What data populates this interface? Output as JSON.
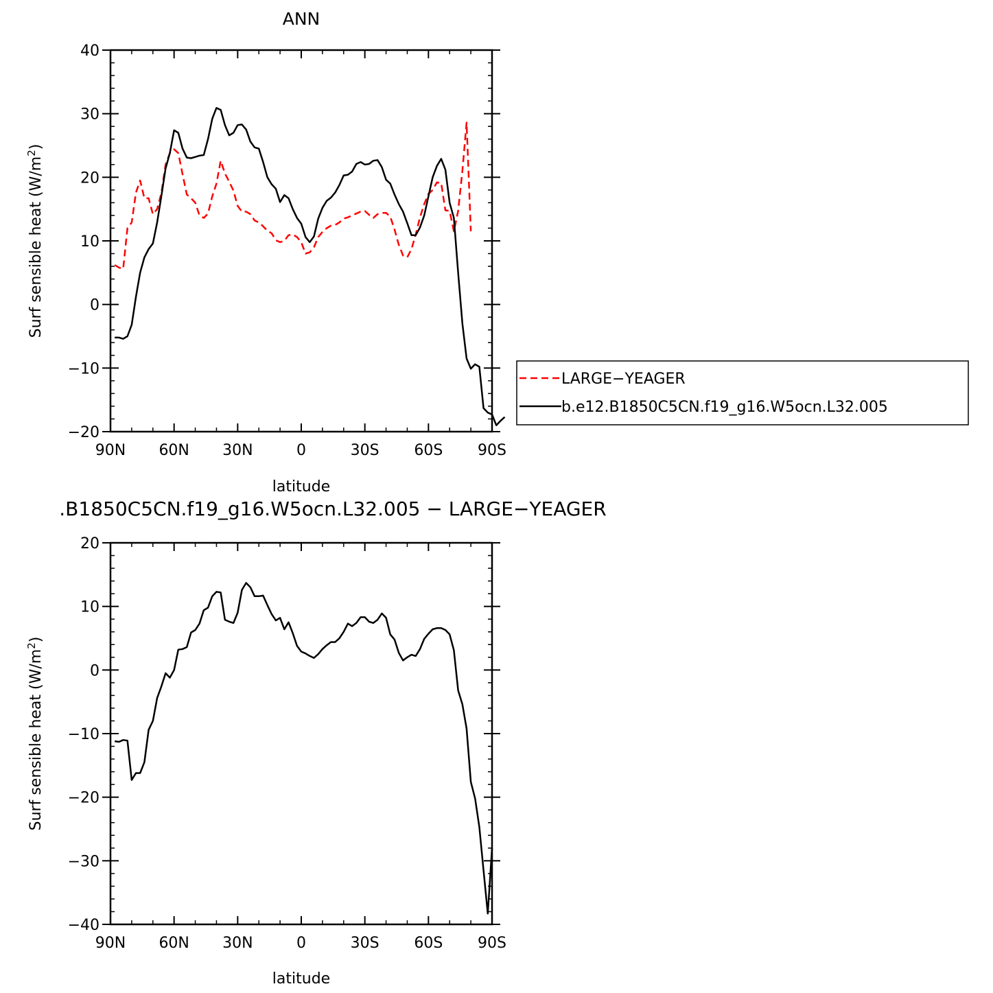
{
  "chart_data": [
    {
      "type": "line",
      "title": "ANN",
      "xlabel": "latitude",
      "ylabel": "Surf sensible heat (W/m",
      "ylabel_superscript": "2",
      "ylabel_suffix": ")",
      "xlim": [
        90,
        -90
      ],
      "ylim": [
        -20,
        40
      ],
      "x_ticks": [
        90,
        60,
        30,
        0,
        -30,
        -60,
        -90
      ],
      "x_tick_labels": [
        "90N",
        "60N",
        "30N",
        "0",
        "30S",
        "60S",
        "90S"
      ],
      "y_ticks": [
        -20,
        -10,
        0,
        10,
        20,
        30,
        40
      ],
      "y_tick_labels": [
        "−20",
        "−10",
        "0",
        "10",
        "20",
        "30",
        "40"
      ],
      "legend_position": "right",
      "series": [
        {
          "name": "LARGE−YEAGER",
          "color": "#ff0000",
          "dash": "dashed",
          "points": [
            [
              88,
              6.2
            ],
            [
              86,
              5.8
            ],
            [
              84,
              5.6
            ],
            [
              82,
              12
            ],
            [
              80,
              12.9
            ],
            [
              78,
              17.6
            ],
            [
              76,
              19.5
            ],
            [
              74,
              16.7
            ],
            [
              72,
              16.7
            ],
            [
              70,
              14.2
            ],
            [
              68,
              15
            ],
            [
              66,
              17.5
            ],
            [
              64,
              22
            ],
            [
              62,
              23.8
            ],
            [
              60,
              24.4
            ],
            [
              58,
              23.8
            ],
            [
              56,
              20.5
            ],
            [
              54,
              17.3
            ],
            [
              52,
              16.7
            ],
            [
              50,
              16
            ],
            [
              48,
              14
            ],
            [
              46,
              13.6
            ],
            [
              44,
              14.3
            ],
            [
              42,
              17
            ],
            [
              40,
              19
            ],
            [
              38,
              22.6
            ],
            [
              36,
              20.6
            ],
            [
              34,
              19.3
            ],
            [
              32,
              17.9
            ],
            [
              30,
              15.5
            ],
            [
              28,
              14.6
            ],
            [
              26,
              14.6
            ],
            [
              24,
              14.2
            ],
            [
              22,
              13.2
            ],
            [
              20,
              12.9
            ],
            [
              18,
              12.3
            ],
            [
              16,
              11.6
            ],
            [
              14,
              11.2
            ],
            [
              12,
              10.1
            ],
            [
              10,
              9.8
            ],
            [
              8,
              10
            ],
            [
              6,
              10.9
            ],
            [
              4,
              11
            ],
            [
              2,
              10.6
            ],
            [
              0,
              9.8
            ],
            [
              -2,
              8
            ],
            [
              -4,
              8.2
            ],
            [
              -6,
              9
            ],
            [
              -8,
              10.6
            ],
            [
              -10,
              11.4
            ],
            [
              -12,
              12
            ],
            [
              -14,
              12.4
            ],
            [
              -16,
              12.5
            ],
            [
              -18,
              12.9
            ],
            [
              -20,
              13.5
            ],
            [
              -22,
              13.7
            ],
            [
              -24,
              14
            ],
            [
              -26,
              14.3
            ],
            [
              -28,
              14.6
            ],
            [
              -30,
              14.7
            ],
            [
              -32,
              14.1
            ],
            [
              -34,
              13.6
            ],
            [
              -36,
              14.2
            ],
            [
              -38,
              14.4
            ],
            [
              -40,
              14.4
            ],
            [
              -42,
              13.8
            ],
            [
              -44,
              11.8
            ],
            [
              -46,
              9.4
            ],
            [
              -48,
              7.7
            ],
            [
              -50,
              7.4
            ],
            [
              -52,
              8.7
            ],
            [
              -54,
              11
            ],
            [
              -56,
              13.7
            ],
            [
              -58,
              15.8
            ],
            [
              -60,
              17.4
            ],
            [
              -62,
              18
            ],
            [
              -64,
              19.2
            ],
            [
              -66,
              19.1
            ],
            [
              -68,
              14.8
            ],
            [
              -70,
              14.7
            ],
            [
              -72,
              11.5
            ],
            [
              -74,
              14.7
            ],
            [
              -76,
              21
            ],
            [
              -78,
              28.6
            ],
            [
              -80,
              11.5
            ]
          ]
        },
        {
          "name": "b.e12.B1850C5CN.f19_g16.W5ocn.L32.005",
          "color": "#000000",
          "dash": "solid",
          "points": [
            [
              88,
              -5.2
            ],
            [
              86,
              -5.2
            ],
            [
              84,
              -5.4
            ],
            [
              82,
              -5
            ],
            [
              80,
              -3.2
            ],
            [
              78,
              1.2
            ],
            [
              76,
              5
            ],
            [
              74,
              7.4
            ],
            [
              72,
              8.7
            ],
            [
              70,
              9.6
            ],
            [
              68,
              12.9
            ],
            [
              66,
              17
            ],
            [
              64,
              21.4
            ],
            [
              62,
              23.8
            ],
            [
              60,
              27.4
            ],
            [
              58,
              27
            ],
            [
              56,
              24.5
            ],
            [
              54,
              23.1
            ],
            [
              52,
              23
            ],
            [
              50,
              23.2
            ],
            [
              48,
              23.4
            ],
            [
              46,
              23.5
            ],
            [
              44,
              26
            ],
            [
              42,
              29.2
            ],
            [
              40,
              30.9
            ],
            [
              38,
              30.6
            ],
            [
              36,
              28.2
            ],
            [
              34,
              26.6
            ],
            [
              32,
              27
            ],
            [
              30,
              28.2
            ],
            [
              28,
              28.3
            ],
            [
              26,
              27.5
            ],
            [
              24,
              25.6
            ],
            [
              22,
              24.7
            ],
            [
              20,
              24.5
            ],
            [
              18,
              22.4
            ],
            [
              16,
              20
            ],
            [
              14,
              18.9
            ],
            [
              12,
              18.2
            ],
            [
              10,
              16.1
            ],
            [
              8,
              17.2
            ],
            [
              6,
              16.7
            ],
            [
              4,
              15
            ],
            [
              2,
              13.6
            ],
            [
              0,
              12.7
            ],
            [
              -2,
              10.6
            ],
            [
              -4,
              9.8
            ],
            [
              -6,
              10.7
            ],
            [
              -8,
              13.5
            ],
            [
              -10,
              15.2
            ],
            [
              -12,
              16.3
            ],
            [
              -14,
              16.8
            ],
            [
              -16,
              17.6
            ],
            [
              -18,
              18.8
            ],
            [
              -20,
              20.3
            ],
            [
              -22,
              20.4
            ],
            [
              -24,
              20.9
            ],
            [
              -26,
              22.1
            ],
            [
              -28,
              22.4
            ],
            [
              -30,
              22
            ],
            [
              -32,
              22.1
            ],
            [
              -34,
              22.6
            ],
            [
              -36,
              22.7
            ],
            [
              -38,
              21.6
            ],
            [
              -40,
              19.6
            ],
            [
              -42,
              19
            ],
            [
              -44,
              17.3
            ],
            [
              -46,
              15.8
            ],
            [
              -48,
              14.6
            ],
            [
              -50,
              12.8
            ],
            [
              -52,
              10.9
            ],
            [
              -54,
              10.9
            ],
            [
              -56,
              12.1
            ],
            [
              -58,
              14
            ],
            [
              -60,
              17
            ],
            [
              -62,
              20
            ],
            [
              -64,
              21.8
            ],
            [
              -66,
              22.9
            ],
            [
              -68,
              21.2
            ],
            [
              -70,
              16
            ],
            [
              -72,
              13.6
            ],
            [
              -74,
              5
            ],
            [
              -76,
              -3
            ],
            [
              -78,
              -8.5
            ],
            [
              -80,
              -10.1
            ],
            [
              -82,
              -9.4
            ],
            [
              -84,
              -9.8
            ],
            [
              -86,
              -16.3
            ],
            [
              -88,
              -17
            ],
            [
              -90,
              -17.3
            ],
            [
              -92,
              -19
            ],
            [
              -94,
              -18.3
            ],
            [
              -96,
              -17.7
            ]
          ]
        }
      ]
    },
    {
      "type": "line",
      "title": ".B1850C5CN.f19_g16.W5ocn.L32.005 − LARGE−YEAGER",
      "xlabel": "latitude",
      "ylabel": "Surf sensible heat (W/m",
      "ylabel_superscript": "2",
      "ylabel_suffix": ")",
      "xlim": [
        90,
        -90
      ],
      "ylim": [
        -40,
        20
      ],
      "x_ticks": [
        90,
        60,
        30,
        0,
        -30,
        -60,
        -90
      ],
      "x_tick_labels": [
        "90N",
        "60N",
        "30N",
        "0",
        "30S",
        "60S",
        "90S"
      ],
      "y_ticks": [
        -40,
        -30,
        -20,
        -10,
        0,
        10,
        20
      ],
      "y_tick_labels": [
        "−40",
        "−30",
        "−20",
        "−10",
        "0",
        "10",
        "20"
      ],
      "series": [
        {
          "color": "#000000",
          "dash": "solid",
          "points": [
            [
              88,
              -11.2
            ],
            [
              86,
              -11.3
            ],
            [
              84,
              -11
            ],
            [
              82,
              -11.1
            ],
            [
              80,
              -17.3
            ],
            [
              78,
              -16.2
            ],
            [
              76,
              -16.2
            ],
            [
              74,
              -14.5
            ],
            [
              72,
              -9.4
            ],
            [
              70,
              -8
            ],
            [
              68,
              -4.4
            ],
            [
              66,
              -2.6
            ],
            [
              64,
              -0.5
            ],
            [
              62,
              -1.2
            ],
            [
              60,
              0
            ],
            [
              58,
              3.2
            ],
            [
              56,
              3.3
            ],
            [
              54,
              3.6
            ],
            [
              52,
              5.9
            ],
            [
              50,
              6.3
            ],
            [
              48,
              7.3
            ],
            [
              46,
              9.4
            ],
            [
              44,
              9.8
            ],
            [
              42,
              11.6
            ],
            [
              40,
              12.3
            ],
            [
              38,
              12.2
            ],
            [
              36,
              7.9
            ],
            [
              34,
              7.6
            ],
            [
              32,
              7.4
            ],
            [
              30,
              9
            ],
            [
              28,
              12.6
            ],
            [
              26,
              13.7
            ],
            [
              24,
              13
            ],
            [
              22,
              11.6
            ],
            [
              20,
              11.6
            ],
            [
              18,
              11.7
            ],
            [
              16,
              10.2
            ],
            [
              14,
              8.8
            ],
            [
              12,
              7.8
            ],
            [
              10,
              8.2
            ],
            [
              8,
              6.4
            ],
            [
              6,
              7.5
            ],
            [
              4,
              5.8
            ],
            [
              2,
              3.8
            ],
            [
              0,
              2.9
            ],
            [
              -2,
              2.6
            ],
            [
              -4,
              2.2
            ],
            [
              -6,
              1.9
            ],
            [
              -8,
              2.5
            ],
            [
              -10,
              3.3
            ],
            [
              -12,
              3.9
            ],
            [
              -14,
              4.4
            ],
            [
              -16,
              4.4
            ],
            [
              -18,
              5
            ],
            [
              -20,
              6
            ],
            [
              -22,
              7.3
            ],
            [
              -24,
              6.9
            ],
            [
              -26,
              7.4
            ],
            [
              -28,
              8.3
            ],
            [
              -30,
              8.3
            ],
            [
              -32,
              7.6
            ],
            [
              -34,
              7.4
            ],
            [
              -36,
              7.9
            ],
            [
              -38,
              8.9
            ],
            [
              -40,
              8.2
            ],
            [
              -42,
              5.6
            ],
            [
              -44,
              4.8
            ],
            [
              -46,
              2.7
            ],
            [
              -48,
              1.5
            ],
            [
              -50,
              2
            ],
            [
              -52,
              2.4
            ],
            [
              -54,
              2.2
            ],
            [
              -56,
              3.3
            ],
            [
              -58,
              4.9
            ],
            [
              -60,
              5.7
            ],
            [
              -62,
              6.4
            ],
            [
              -64,
              6.6
            ],
            [
              -66,
              6.6
            ],
            [
              -68,
              6.3
            ],
            [
              -70,
              5.6
            ],
            [
              -72,
              3.1
            ],
            [
              -74,
              -3.2
            ],
            [
              -76,
              -5.4
            ],
            [
              -78,
              -9.2
            ],
            [
              -80,
              -17.6
            ],
            [
              -82,
              -20.2
            ],
            [
              -84,
              -24.7
            ],
            [
              -86,
              -31.5
            ],
            [
              -88,
              -38.3
            ],
            [
              -90,
              -28
            ]
          ]
        }
      ]
    }
  ]
}
